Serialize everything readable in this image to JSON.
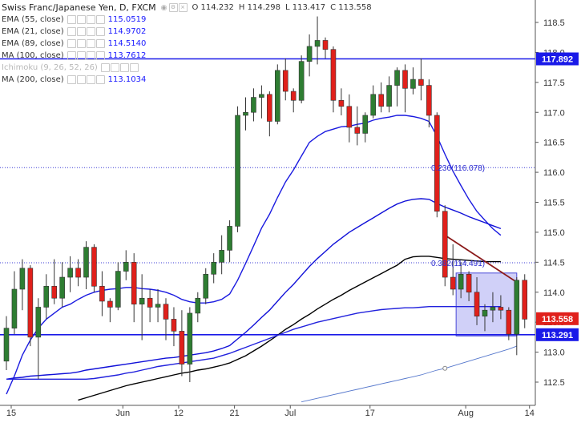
{
  "legend": {
    "title": "Swiss Franc/Japanese Yen, D, FXCM",
    "ohlc": {
      "o": "O 114.232",
      "h": "H 114.298",
      "l": "L 113.417",
      "c": "C 113.558"
    },
    "indicators": [
      {
        "name": "EMA (55, close)",
        "value": "115.0519",
        "faded": false
      },
      {
        "name": "EMA (21, close)",
        "value": "114.9702",
        "faded": false
      },
      {
        "name": "EMA (89, close)",
        "value": "114.5140",
        "faded": false
      },
      {
        "name": "MA (100, close)",
        "value": "113.7612",
        "faded": false
      },
      {
        "name": "Ichimoku (9, 26, 52, 26)",
        "value": "",
        "faded": true
      },
      {
        "name": "MA (200, close)",
        "value": "113.1034",
        "faded": false
      }
    ]
  },
  "chart_data": {
    "type": "candlestick",
    "title": "Swiss Franc/Japanese Yen, D, FXCM",
    "ylim": [
      112.2,
      118.85
    ],
    "x_ticks": [
      "15",
      "Jun",
      "12",
      "21",
      "Jul",
      "17",
      "Aug",
      "14"
    ],
    "y_ticks": [
      "112.5",
      "113.0",
      "113.5",
      "114.0",
      "114.5",
      "115.0",
      "115.5",
      "116.0",
      "116.5",
      "117.0",
      "117.5",
      "118.0",
      "118.5"
    ],
    "price_labels": [
      "117.892",
      "113.558",
      "113.291"
    ],
    "colors": {
      "up": "#2e7d32",
      "down": "#e0201b",
      "ema55": "#1010d8",
      "ema21": "#1a1ae0",
      "ema89": "#3030b0",
      "ma100": "#2222dd",
      "ma200": "#5577cc",
      "ema89_black": "#000000"
    },
    "candles": [
      {
        "o": 112.85,
        "h": 113.6,
        "l": 112.7,
        "c": 113.4
      },
      {
        "o": 113.4,
        "h": 114.35,
        "l": 113.3,
        "c": 114.05
      },
      {
        "o": 114.05,
        "h": 114.55,
        "l": 113.7,
        "c": 114.4
      },
      {
        "o": 114.4,
        "h": 114.45,
        "l": 113.1,
        "c": 113.25
      },
      {
        "o": 113.25,
        "h": 113.9,
        "l": 112.55,
        "c": 113.75
      },
      {
        "o": 113.75,
        "h": 114.3,
        "l": 113.55,
        "c": 114.1
      },
      {
        "o": 114.1,
        "h": 114.55,
        "l": 113.8,
        "c": 113.9
      },
      {
        "o": 113.9,
        "h": 114.5,
        "l": 113.75,
        "c": 114.25
      },
      {
        "o": 114.25,
        "h": 114.6,
        "l": 114.0,
        "c": 114.4
      },
      {
        "o": 114.4,
        "h": 114.55,
        "l": 114.1,
        "c": 114.25
      },
      {
        "o": 114.25,
        "h": 114.85,
        "l": 114.05,
        "c": 114.75
      },
      {
        "o": 114.75,
        "h": 114.8,
        "l": 114.0,
        "c": 114.1
      },
      {
        "o": 114.1,
        "h": 114.35,
        "l": 113.6,
        "c": 113.85
      },
      {
        "o": 113.85,
        "h": 113.9,
        "l": 113.5,
        "c": 113.75
      },
      {
        "o": 113.75,
        "h": 114.5,
        "l": 113.7,
        "c": 114.35
      },
      {
        "o": 114.35,
        "h": 114.7,
        "l": 114.2,
        "c": 114.5
      },
      {
        "o": 114.5,
        "h": 114.65,
        "l": 113.5,
        "c": 113.8
      },
      {
        "o": 113.8,
        "h": 114.3,
        "l": 113.2,
        "c": 113.9
      },
      {
        "o": 113.9,
        "h": 114.05,
        "l": 113.5,
        "c": 113.75
      },
      {
        "o": 113.75,
        "h": 114.05,
        "l": 113.5,
        "c": 113.8
      },
      {
        "o": 113.8,
        "h": 113.9,
        "l": 113.2,
        "c": 113.55
      },
      {
        "o": 113.55,
        "h": 113.75,
        "l": 113.1,
        "c": 113.35
      },
      {
        "o": 113.35,
        "h": 113.7,
        "l": 112.6,
        "c": 112.8
      },
      {
        "o": 112.8,
        "h": 113.75,
        "l": 112.5,
        "c": 113.65
      },
      {
        "o": 113.65,
        "h": 114.0,
        "l": 113.5,
        "c": 113.9
      },
      {
        "o": 113.9,
        "h": 114.4,
        "l": 113.8,
        "c": 114.3
      },
      {
        "o": 114.3,
        "h": 114.65,
        "l": 114.15,
        "c": 114.5
      },
      {
        "o": 114.5,
        "h": 114.95,
        "l": 114.3,
        "c": 114.7
      },
      {
        "o": 114.7,
        "h": 115.2,
        "l": 114.5,
        "c": 115.1
      },
      {
        "o": 115.1,
        "h": 117.1,
        "l": 115.0,
        "c": 116.95
      },
      {
        "o": 116.95,
        "h": 117.25,
        "l": 116.7,
        "c": 117.0
      },
      {
        "o": 117.0,
        "h": 117.4,
        "l": 116.85,
        "c": 117.25
      },
      {
        "o": 117.25,
        "h": 117.45,
        "l": 116.9,
        "c": 117.3
      },
      {
        "o": 117.3,
        "h": 117.35,
        "l": 116.6,
        "c": 116.85
      },
      {
        "o": 116.85,
        "h": 117.8,
        "l": 116.8,
        "c": 117.7
      },
      {
        "o": 117.7,
        "h": 117.9,
        "l": 117.2,
        "c": 117.35
      },
      {
        "o": 117.35,
        "h": 117.4,
        "l": 117.0,
        "c": 117.2
      },
      {
        "o": 117.2,
        "h": 117.95,
        "l": 117.15,
        "c": 117.85
      },
      {
        "o": 117.85,
        "h": 118.3,
        "l": 117.6,
        "c": 118.1
      },
      {
        "o": 118.1,
        "h": 118.6,
        "l": 117.8,
        "c": 118.2
      },
      {
        "o": 118.2,
        "h": 118.25,
        "l": 117.9,
        "c": 118.05
      },
      {
        "o": 118.05,
        "h": 118.1,
        "l": 117.0,
        "c": 117.2
      },
      {
        "o": 117.2,
        "h": 117.4,
        "l": 116.95,
        "c": 117.1
      },
      {
        "o": 117.1,
        "h": 117.3,
        "l": 116.5,
        "c": 116.75
      },
      {
        "o": 116.75,
        "h": 117.1,
        "l": 116.45,
        "c": 116.65
      },
      {
        "o": 116.65,
        "h": 117.0,
        "l": 116.5,
        "c": 116.95
      },
      {
        "o": 116.95,
        "h": 117.45,
        "l": 116.9,
        "c": 117.3
      },
      {
        "o": 117.3,
        "h": 117.5,
        "l": 117.0,
        "c": 117.1
      },
      {
        "o": 117.1,
        "h": 117.6,
        "l": 117.0,
        "c": 117.45
      },
      {
        "o": 117.45,
        "h": 117.75,
        "l": 117.1,
        "c": 117.7
      },
      {
        "o": 117.7,
        "h": 117.8,
        "l": 117.0,
        "c": 117.4
      },
      {
        "o": 117.4,
        "h": 117.75,
        "l": 117.3,
        "c": 117.55
      },
      {
        "o": 117.55,
        "h": 117.9,
        "l": 117.2,
        "c": 117.45
      },
      {
        "o": 117.45,
        "h": 117.55,
        "l": 116.75,
        "c": 116.95
      },
      {
        "o": 116.95,
        "h": 117.0,
        "l": 115.25,
        "c": 115.35
      },
      {
        "o": 115.35,
        "h": 115.45,
        "l": 114.1,
        "c": 114.25
      },
      {
        "o": 114.25,
        "h": 114.8,
        "l": 113.95,
        "c": 114.05
      },
      {
        "o": 114.05,
        "h": 114.5,
        "l": 113.9,
        "c": 114.3
      },
      {
        "o": 114.3,
        "h": 114.35,
        "l": 113.85,
        "c": 114.0
      },
      {
        "o": 114.0,
        "h": 114.25,
        "l": 113.45,
        "c": 113.6
      },
      {
        "o": 113.6,
        "h": 113.8,
        "l": 113.35,
        "c": 113.7
      },
      {
        "o": 113.7,
        "h": 114.0,
        "l": 113.5,
        "c": 113.75
      },
      {
        "o": 113.75,
        "h": 113.95,
        "l": 113.55,
        "c": 113.7
      },
      {
        "o": 113.7,
        "h": 113.75,
        "l": 113.2,
        "c": 113.3
      },
      {
        "o": 113.3,
        "h": 114.25,
        "l": 112.95,
        "c": 114.2
      },
      {
        "o": 114.2,
        "h": 114.3,
        "l": 113.4,
        "c": 113.55
      }
    ],
    "series": [
      {
        "name": "EMA (21, close)",
        "color": "#1a1ae0",
        "x_start": 0,
        "values": [
          112.3,
          112.6,
          112.95,
          113.2,
          113.4,
          113.55,
          113.65,
          113.75,
          113.8,
          113.88,
          113.95,
          114.0,
          114.03,
          114.05,
          114.06,
          114.08,
          114.08,
          114.06,
          114.05,
          114.03,
          114.0,
          113.95,
          113.88,
          113.84,
          113.82,
          113.82,
          113.84,
          113.88,
          113.97,
          114.2,
          114.48,
          114.77,
          115.07,
          115.3,
          115.58,
          115.84,
          116.04,
          116.27,
          116.5,
          116.6,
          116.68,
          116.72,
          116.76,
          116.77,
          116.8,
          116.82,
          116.87,
          116.9,
          116.92,
          116.95,
          116.95,
          116.93,
          116.9,
          116.85,
          116.6,
          116.3,
          116.02,
          115.78,
          115.55,
          115.35,
          115.2,
          115.06,
          114.95
        ]
      },
      {
        "name": "EMA (55, close)",
        "color": "#1010d8",
        "x_start": 0,
        "values": [
          112.55,
          112.57,
          112.58,
          112.6,
          112.61,
          112.62,
          112.63,
          112.64,
          112.65,
          112.67,
          112.7,
          112.72,
          112.74,
          112.76,
          112.78,
          112.8,
          112.82,
          112.84,
          112.86,
          112.88,
          112.9,
          112.91,
          112.93,
          112.95,
          112.97,
          112.99,
          113.02,
          113.06,
          113.11,
          113.22,
          113.33,
          113.45,
          113.58,
          113.7,
          113.85,
          114.0,
          114.13,
          114.28,
          114.43,
          114.56,
          114.68,
          114.8,
          114.9,
          115.0,
          115.08,
          115.16,
          115.24,
          115.32,
          115.4,
          115.47,
          115.52,
          115.55,
          115.56,
          115.55,
          115.48,
          115.42,
          115.37,
          115.32,
          115.26,
          115.21,
          115.16,
          115.11,
          115.06
        ]
      },
      {
        "name": "EMA (89, close)",
        "color": "#000000",
        "x_start": 9,
        "values": [
          112.2,
          112.24,
          112.28,
          112.32,
          112.36,
          112.4,
          112.44,
          112.47,
          112.5,
          112.53,
          112.56,
          112.59,
          112.62,
          112.65,
          112.67,
          112.7,
          112.72,
          112.75,
          112.78,
          112.82,
          112.88,
          112.94,
          113.02,
          113.1,
          113.19,
          113.28,
          113.38,
          113.46,
          113.55,
          113.63,
          113.72,
          113.8,
          113.88,
          113.95,
          114.03,
          114.1,
          114.17,
          114.24,
          114.31,
          114.38,
          114.45,
          114.55,
          114.59,
          114.6,
          114.6,
          114.58,
          114.56,
          114.55,
          114.54,
          114.53,
          114.52,
          114.51,
          114.51,
          114.51
        ]
      },
      {
        "name": "MA (100, close)",
        "color": "#2222dd",
        "x_start": 0,
        "values": [
          112.55,
          112.55,
          112.55,
          112.55,
          112.55,
          112.55,
          112.55,
          112.55,
          112.55,
          112.55,
          112.55,
          112.56,
          112.58,
          112.6,
          112.62,
          112.65,
          112.67,
          112.7,
          112.73,
          112.76,
          112.78,
          112.8,
          112.82,
          112.84,
          112.86,
          112.88,
          112.9,
          112.94,
          112.98,
          113.03,
          113.08,
          113.13,
          113.18,
          113.23,
          113.28,
          113.33,
          113.38,
          113.42,
          113.46,
          113.5,
          113.53,
          113.56,
          113.59,
          113.62,
          113.65,
          113.67,
          113.69,
          113.71,
          113.72,
          113.73,
          113.74,
          113.74,
          113.75,
          113.76,
          113.76,
          113.76,
          113.76,
          113.76,
          113.76,
          113.76,
          113.76,
          113.76,
          113.76
        ]
      },
      {
        "name": "MA (200, close)",
        "color": "#5577cc",
        "x_start": 37,
        "values": [
          112.17,
          112.2,
          112.23,
          112.26,
          112.29,
          112.32,
          112.35,
          112.38,
          112.41,
          112.44,
          112.47,
          112.5,
          112.53,
          112.56,
          112.59,
          112.62,
          112.66,
          112.7,
          112.73,
          112.77,
          112.81,
          112.85,
          112.89,
          112.93,
          112.97,
          113.01,
          113.05,
          113.1
        ]
      }
    ],
    "levels": [
      {
        "price": 117.892,
        "label": "117.892",
        "color": "#1a1ae8"
      },
      {
        "price": 113.291,
        "label": "113.291",
        "color": "#1a1ae8"
      }
    ],
    "dotted_levels": [
      116.078,
      114.491
    ],
    "annotations": [
      "0.236(116.078)",
      "0.382(114.491)"
    ],
    "trendline": {
      "x1": 55,
      "y1": 114.95,
      "x2": 64,
      "y2": 114.15
    },
    "box": {
      "x1": 57,
      "x2": 64,
      "y1": 113.27,
      "y2": 114.32
    }
  }
}
